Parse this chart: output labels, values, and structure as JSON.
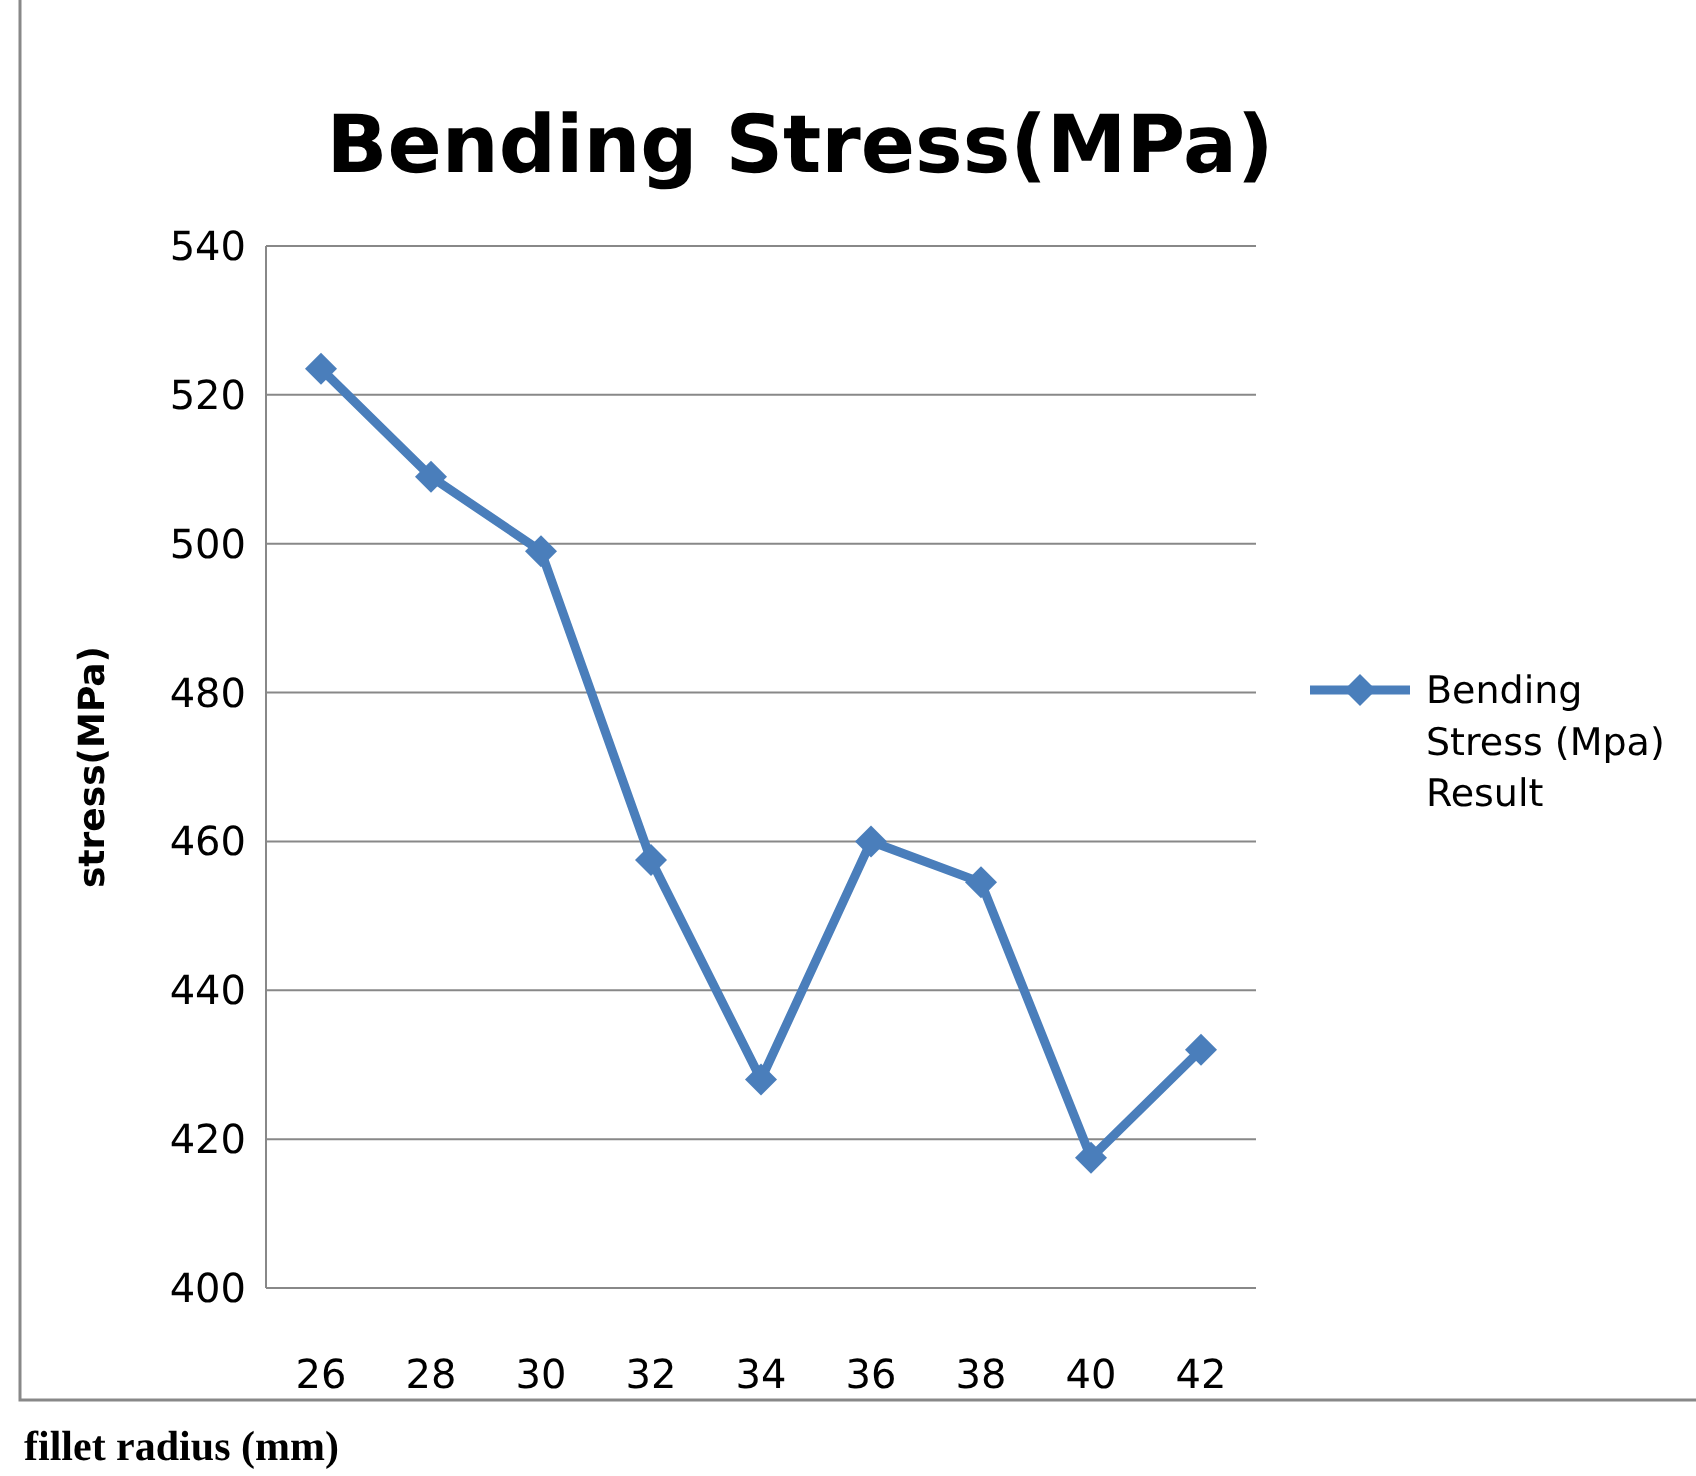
{
  "chart_data": {
    "type": "line",
    "title": "Bending Stress(MPa)",
    "xlabel": "fillet radius (mm)",
    "ylabel": "stress(MPa)",
    "categories": [
      "26",
      "28",
      "30",
      "32",
      "34",
      "36",
      "38",
      "40",
      "42"
    ],
    "series": [
      {
        "name": "Bending Stress (Mpa) Result",
        "color": "#4a7ebb",
        "values": [
          523.5,
          509,
          499,
          457.5,
          428,
          460,
          454.5,
          417.5,
          432
        ]
      }
    ],
    "ylim": [
      400,
      540
    ],
    "yticks": [
      400,
      420,
      440,
      460,
      480,
      500,
      520,
      540
    ],
    "grid": "y",
    "legend": "right",
    "marker": "diamond",
    "line_style": "solid"
  }
}
